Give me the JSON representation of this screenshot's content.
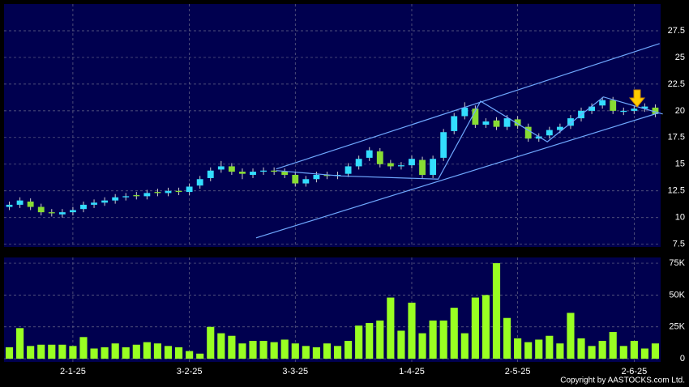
{
  "chart_data": [
    {
      "type": "candlestick",
      "categories": [
        null,
        null,
        null,
        null,
        null,
        null,
        "2-1-25",
        null,
        null,
        null,
        null,
        null,
        null,
        null,
        null,
        null,
        null,
        "3-2-25",
        null,
        null,
        null,
        null,
        null,
        null,
        null,
        null,
        null,
        "3-3-25",
        null,
        null,
        null,
        null,
        null,
        null,
        null,
        null,
        null,
        null,
        "1-4-25",
        null,
        null,
        null,
        null,
        null,
        null,
        null,
        null,
        null,
        "2-5-25",
        null,
        null,
        null,
        null,
        null,
        null,
        null,
        null,
        null,
        null,
        "2-6-25",
        null,
        null
      ],
      "open": [
        11.0,
        11.2,
        11.5,
        11.0,
        10.5,
        10.3,
        10.5,
        10.8,
        11.2,
        11.4,
        11.6,
        11.9,
        12.1,
        12.0,
        12.4,
        12.3,
        12.5,
        12.4,
        13.0,
        13.7,
        14.5,
        14.8,
        14.3,
        14.0,
        14.3,
        14.4,
        14.3,
        14.0,
        13.2,
        13.6,
        14.0,
        13.9,
        14.1,
        14.8,
        15.6,
        16.2,
        15.1,
        14.8,
        14.9,
        15.4,
        14.0,
        15.6,
        18.1,
        19.5,
        20.2,
        18.7,
        19.1,
        18.5,
        19.2,
        18.5,
        17.4,
        17.7,
        18.2,
        18.6,
        19.3,
        20.0,
        20.5,
        21.0,
        19.9,
        20.0,
        20.2,
        20.3
      ],
      "high": [
        11.5,
        11.9,
        11.8,
        11.3,
        10.8,
        10.8,
        11.0,
        11.5,
        11.7,
        11.9,
        12.2,
        12.3,
        12.4,
        12.6,
        12.7,
        12.8,
        12.8,
        13.2,
        13.9,
        14.7,
        15.3,
        15.1,
        14.6,
        14.6,
        14.7,
        14.7,
        14.6,
        14.3,
        13.9,
        14.3,
        14.3,
        14.3,
        15.1,
        15.8,
        16.6,
        16.5,
        15.4,
        15.2,
        15.8,
        15.7,
        15.8,
        18.3,
        19.8,
        20.8,
        20.5,
        19.3,
        19.4,
        19.6,
        19.5,
        18.8,
        17.9,
        18.5,
        18.8,
        19.6,
        20.3,
        20.7,
        21.3,
        21.3,
        20.3,
        20.5,
        20.7,
        20.6
      ],
      "low": [
        10.7,
        10.9,
        10.7,
        10.2,
        10.1,
        10.0,
        10.2,
        10.5,
        10.9,
        11.1,
        11.3,
        11.6,
        11.7,
        11.7,
        12.0,
        12.0,
        12.1,
        12.1,
        12.7,
        13.4,
        14.2,
        14.0,
        13.6,
        13.7,
        14.0,
        14.0,
        13.7,
        12.9,
        12.9,
        13.3,
        13.6,
        13.6,
        13.8,
        14.5,
        15.3,
        14.7,
        14.5,
        14.5,
        14.6,
        13.7,
        13.7,
        15.3,
        17.8,
        19.2,
        18.4,
        18.4,
        18.2,
        18.2,
        18.3,
        17.1,
        17.1,
        17.4,
        17.9,
        18.3,
        19.0,
        19.7,
        20.2,
        19.7,
        19.6,
        19.7,
        19.9,
        19.4
      ],
      "close": [
        11.2,
        11.6,
        11.0,
        10.5,
        10.4,
        10.5,
        10.7,
        11.2,
        11.4,
        11.6,
        11.9,
        12.0,
        12.0,
        12.3,
        12.3,
        12.5,
        12.4,
        12.9,
        13.6,
        14.4,
        14.8,
        14.3,
        14.1,
        14.3,
        14.4,
        14.3,
        14.0,
        13.2,
        13.6,
        14.0,
        13.9,
        14.0,
        14.8,
        15.5,
        16.3,
        15.0,
        14.8,
        14.9,
        15.5,
        14.0,
        15.5,
        18.0,
        19.5,
        20.3,
        18.7,
        19.0,
        18.5,
        19.3,
        18.6,
        17.4,
        17.6,
        18.2,
        18.5,
        19.3,
        20.0,
        20.4,
        21.0,
        20.0,
        20.0,
        20.2,
        20.4,
        19.7
      ],
      "up_color": "#33ddff",
      "down_color": "#88dd33",
      "ylim": [
        7.25,
        30
      ],
      "yticks": [
        7.5,
        10,
        12.5,
        15,
        17.5,
        20,
        22.5,
        25,
        27.5
      ],
      "grid": true,
      "trendlines": [
        {
          "x": [
            25.2,
            61.4
          ],
          "y": [
            14.55,
            26.3
          ],
          "color": "#6fa8ff"
        },
        {
          "x": [
            23.3,
            61.3
          ],
          "y": [
            8.1,
            19.8
          ],
          "color": "#6fa8ff"
        },
        {
          "x": [
            25.2,
            31.3,
            40.5,
            44.5,
            50.8,
            56.1,
            61.7
          ],
          "y": [
            14.4,
            13.9,
            13.6,
            20.9,
            17.1,
            21.3,
            19.7
          ],
          "color": "#6fa8ff"
        }
      ]
    },
    {
      "type": "bar",
      "values": [
        9000,
        24000,
        10000,
        11000,
        11000,
        11000,
        10000,
        17000,
        8000,
        9000,
        12000,
        9000,
        11000,
        13000,
        12000,
        10000,
        9000,
        6000,
        4000,
        25000,
        20000,
        18000,
        12000,
        14000,
        14000,
        13000,
        15000,
        12000,
        10000,
        9000,
        12000,
        10000,
        14000,
        26000,
        28000,
        30000,
        48000,
        22000,
        44000,
        20000,
        30000,
        30000,
        40000,
        20000,
        48000,
        50000,
        75000,
        32000,
        16000,
        13000,
        15000,
        18000,
        12000,
        36000,
        16000,
        10000,
        14000,
        21000,
        10000,
        14000,
        8000,
        12000
      ],
      "color": "#99ff22",
      "ylim": [
        -2500,
        79500
      ],
      "yticks": [
        0,
        {
          "value": 25000,
          "label": "25K"
        },
        {
          "value": 50000,
          "label": "50K"
        },
        {
          "value": 75000,
          "label": "75K"
        }
      ],
      "grid": true,
      "copyright": "Copyright by AASTOCKS.com Ltd."
    }
  ]
}
